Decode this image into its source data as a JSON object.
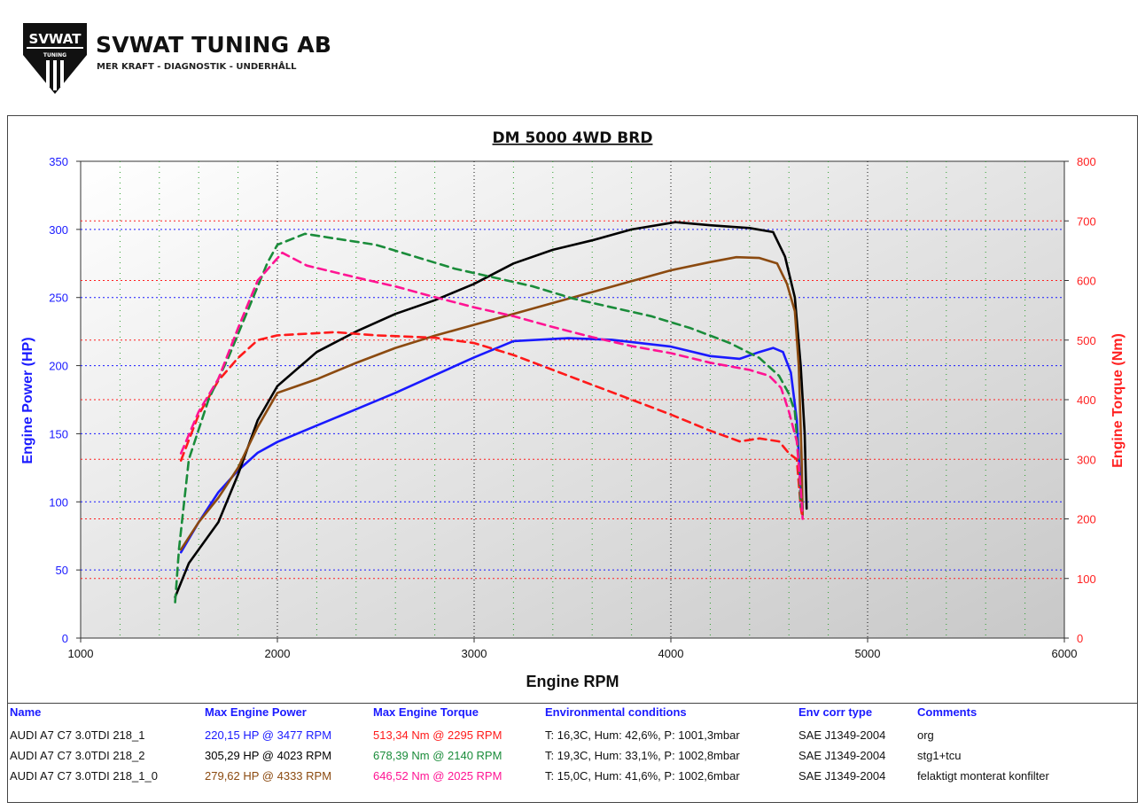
{
  "brand": {
    "badge_text": "SVWAT",
    "badge_sub": "TUNING",
    "company": "SVWAT TUNING AB",
    "tagline": "MER KRAFT - DIAGNOSTIK - UNDERHÅLL"
  },
  "colors": {
    "power_axis": "#1a1aff",
    "torque_axis": "#ff2020"
  },
  "chart_data": {
    "type": "line",
    "title": "DM 5000 4WD BRD",
    "xlabel": "Engine RPM",
    "ylabel_left": "Engine Power (HP)",
    "ylabel_right": "Engine Torque (Nm)",
    "xlim": [
      1000,
      6000
    ],
    "ylim_left": [
      0,
      350
    ],
    "ylim_right": [
      0,
      800
    ],
    "xticks": [
      "1000",
      "2000",
      "3000",
      "4000",
      "5000",
      "6000"
    ],
    "yticks_left": [
      "0",
      "50",
      "100",
      "150",
      "200",
      "250",
      "300",
      "350"
    ],
    "yticks_right": [
      "0",
      "100",
      "200",
      "300",
      "400",
      "500",
      "600",
      "700",
      "800"
    ],
    "grid": true,
    "series": [
      {
        "axis": "left",
        "color": "#1a1aff",
        "dash": false,
        "points": [
          [
            1510,
            63
          ],
          [
            1600,
            85
          ],
          [
            1700,
            107
          ],
          [
            1800,
            123
          ],
          [
            1900,
            136
          ],
          [
            2000,
            144
          ],
          [
            2200,
            156
          ],
          [
            2400,
            168
          ],
          [
            2600,
            180
          ],
          [
            2800,
            193
          ],
          [
            3000,
            206
          ],
          [
            3200,
            218
          ],
          [
            3477,
            220.15
          ],
          [
            3700,
            219
          ],
          [
            4000,
            214
          ],
          [
            4200,
            207
          ],
          [
            4350,
            205
          ],
          [
            4450,
            210
          ],
          [
            4520,
            213
          ],
          [
            4570,
            210
          ],
          [
            4610,
            195
          ],
          [
            4640,
            160
          ],
          [
            4660,
            110
          ],
          [
            4670,
            95
          ]
        ]
      },
      {
        "axis": "left",
        "color": "#000000",
        "dash": false,
        "points": [
          [
            1480,
            30
          ],
          [
            1550,
            55
          ],
          [
            1700,
            85
          ],
          [
            1800,
            120
          ],
          [
            1900,
            160
          ],
          [
            2000,
            185
          ],
          [
            2200,
            210
          ],
          [
            2400,
            225
          ],
          [
            2600,
            238
          ],
          [
            2800,
            248
          ],
          [
            3000,
            260
          ],
          [
            3200,
            275
          ],
          [
            3400,
            285
          ],
          [
            3600,
            292
          ],
          [
            3800,
            300
          ],
          [
            4023,
            305.29
          ],
          [
            4200,
            303
          ],
          [
            4400,
            301
          ],
          [
            4520,
            298
          ],
          [
            4580,
            280
          ],
          [
            4630,
            250
          ],
          [
            4660,
            200
          ],
          [
            4680,
            150
          ],
          [
            4690,
            95
          ]
        ]
      },
      {
        "axis": "left",
        "color": "#8b4a10",
        "dash": false,
        "points": [
          [
            1510,
            65
          ],
          [
            1600,
            85
          ],
          [
            1700,
            103
          ],
          [
            1800,
            125
          ],
          [
            1900,
            155
          ],
          [
            2000,
            180
          ],
          [
            2100,
            185
          ],
          [
            2200,
            190
          ],
          [
            2400,
            202
          ],
          [
            2600,
            213
          ],
          [
            2800,
            222
          ],
          [
            3000,
            230
          ],
          [
            3200,
            238
          ],
          [
            3400,
            246
          ],
          [
            3600,
            254
          ],
          [
            3800,
            262
          ],
          [
            4000,
            270
          ],
          [
            4200,
            276
          ],
          [
            4333,
            279.62
          ],
          [
            4450,
            279
          ],
          [
            4540,
            275
          ],
          [
            4590,
            260
          ],
          [
            4630,
            240
          ],
          [
            4650,
            200
          ],
          [
            4665,
            130
          ],
          [
            4670,
            90
          ]
        ]
      },
      {
        "axis": "right",
        "color": "#ff1a1a",
        "dash": true,
        "points": [
          [
            1510,
            298
          ],
          [
            1600,
            375
          ],
          [
            1700,
            432
          ],
          [
            1800,
            470
          ],
          [
            1900,
            500
          ],
          [
            2000,
            508
          ],
          [
            2295,
            513.34
          ],
          [
            2500,
            508
          ],
          [
            2800,
            504
          ],
          [
            3000,
            495
          ],
          [
            3200,
            475
          ],
          [
            3400,
            450
          ],
          [
            3600,
            425
          ],
          [
            3800,
            400
          ],
          [
            4000,
            375
          ],
          [
            4200,
            348
          ],
          [
            4350,
            330
          ],
          [
            4450,
            335
          ],
          [
            4550,
            330
          ],
          [
            4600,
            310
          ],
          [
            4640,
            300
          ],
          [
            4660,
            220
          ],
          [
            4670,
            200
          ]
        ]
      },
      {
        "axis": "right",
        "color": "#1a8c3a",
        "dash": true,
        "points": [
          [
            1480,
            60
          ],
          [
            1500,
            150
          ],
          [
            1550,
            300
          ],
          [
            1650,
            400
          ],
          [
            1750,
            470
          ],
          [
            1850,
            550
          ],
          [
            1950,
            630
          ],
          [
            2000,
            660
          ],
          [
            2140,
            678.39
          ],
          [
            2300,
            670
          ],
          [
            2500,
            660
          ],
          [
            2700,
            640
          ],
          [
            2900,
            620
          ],
          [
            3100,
            605
          ],
          [
            3300,
            590
          ],
          [
            3500,
            570
          ],
          [
            3700,
            555
          ],
          [
            3900,
            540
          ],
          [
            4100,
            520
          ],
          [
            4300,
            495
          ],
          [
            4450,
            470
          ],
          [
            4550,
            440
          ],
          [
            4600,
            410
          ],
          [
            4630,
            380
          ],
          [
            4650,
            300
          ],
          [
            4660,
            220
          ]
        ]
      },
      {
        "axis": "right",
        "color": "#ff1493",
        "dash": true,
        "points": [
          [
            1510,
            310
          ],
          [
            1600,
            380
          ],
          [
            1700,
            435
          ],
          [
            1800,
            520
          ],
          [
            1900,
            600
          ],
          [
            2025,
            646.52
          ],
          [
            2150,
            625
          ],
          [
            2400,
            605
          ],
          [
            2600,
            590
          ],
          [
            2800,
            572
          ],
          [
            3000,
            555
          ],
          [
            3200,
            540
          ],
          [
            3400,
            522
          ],
          [
            3600,
            505
          ],
          [
            3800,
            490
          ],
          [
            4000,
            478
          ],
          [
            4200,
            462
          ],
          [
            4400,
            450
          ],
          [
            4500,
            440
          ],
          [
            4560,
            420
          ],
          [
            4600,
            380
          ],
          [
            4640,
            330
          ],
          [
            4660,
            250
          ],
          [
            4670,
            200
          ]
        ]
      }
    ]
  },
  "legend": {
    "headers": [
      "Name",
      "Max Engine Power",
      "Max Engine Torque",
      "Environmental conditions",
      "Env corr type",
      "Comments"
    ],
    "rows": [
      {
        "name": "AUDI A7 C7 3.0TDI 218_1",
        "power": "220,15 HP @ 3477 RPM",
        "torque": "513,34 Nm @ 2295 RPM",
        "env": "T: 16,3C, Hum: 42,6%, P: 1001,3mbar",
        "corr": "SAE J1349-2004",
        "comment": "org",
        "power_color": "#1a1aff",
        "torque_color": "#ff1a1a"
      },
      {
        "name": "AUDI A7 C7 3.0TDI 218_2",
        "power": "305,29 HP @ 4023 RPM",
        "torque": "678,39 Nm @ 2140 RPM",
        "env": "T: 19,3C, Hum: 33,1%, P: 1002,8mbar",
        "corr": "SAE J1349-2004",
        "comment": "stg1+tcu",
        "power_color": "#000000",
        "torque_color": "#1a8c3a"
      },
      {
        "name": "AUDI A7 C7 3.0TDI 218_1_0",
        "power": "279,62 HP @ 4333 RPM",
        "torque": "646,52 Nm @ 2025 RPM",
        "env": "T: 15,0C, Hum: 41,6%, P: 1002,6mbar",
        "corr": "SAE J1349-2004",
        "comment": "felaktigt monterat konfilter",
        "power_color": "#8b4a10",
        "torque_color": "#ff1493"
      }
    ]
  }
}
